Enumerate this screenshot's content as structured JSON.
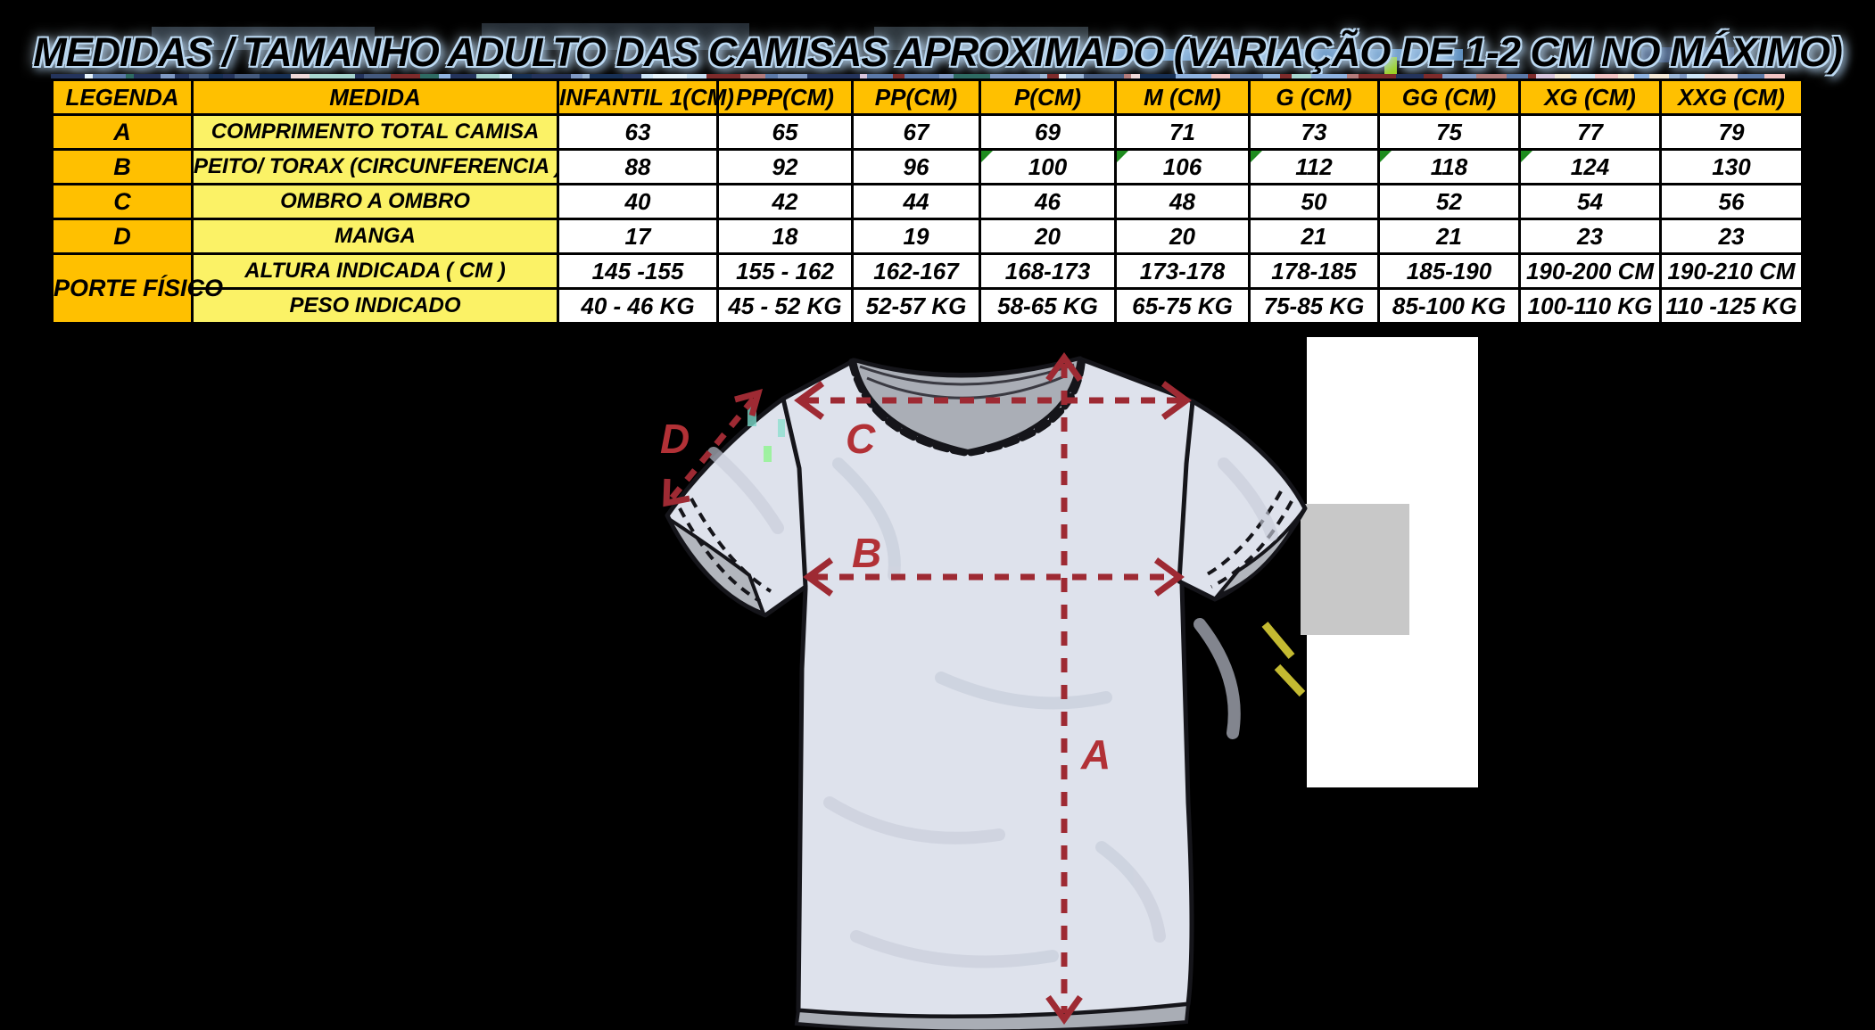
{
  "title": "MEDIDAS / TAMANHO ADULTO DAS CAMISAS APROXIMADO (VARIAÇÃO DE 1-2 CM NO MÁXIMO)",
  "table": {
    "headers": [
      "LEGENDA",
      "MEDIDA",
      "INFANTIL 1(CM)",
      "PPP(CM)",
      "PP(CM)",
      "P(CM)",
      "M (CM)",
      "G (CM)",
      "GG (CM)",
      "XG (CM)",
      "XXG (CM)"
    ],
    "rows": [
      {
        "legend": "A",
        "measure": "COMPRIMENTO TOTAL  CAMISA",
        "values": [
          "63",
          "65",
          "67",
          "69",
          "71",
          "73",
          "75",
          "77",
          "79"
        ],
        "flagged": []
      },
      {
        "legend": "B",
        "measure": "PEITO/ TORAX   (CIRCUNFERENCIA )",
        "values": [
          "88",
          "92",
          "96",
          "100",
          "106",
          "112",
          "118",
          "124",
          "130"
        ],
        "flagged": [
          3,
          4,
          5,
          6,
          7
        ]
      },
      {
        "legend": "C",
        "measure": "OMBRO A OMBRO",
        "values": [
          "40",
          "42",
          "44",
          "46",
          "48",
          "50",
          "52",
          "54",
          "56"
        ],
        "flagged": []
      },
      {
        "legend": "D",
        "measure": "MANGA",
        "values": [
          "17",
          "18",
          "19",
          "20",
          "20",
          "21",
          "21",
          "23",
          "23"
        ],
        "flagged": []
      },
      {
        "legend": "PORTE FÍSICO",
        "measure": "ALTURA INDICADA ( CM )",
        "values": [
          "145 -155",
          "155 - 162",
          "162-167",
          "168-173",
          "173-178",
          "178-185",
          "185-190",
          "190-200 CM",
          "190-210 CM"
        ],
        "flagged": []
      },
      {
        "legend": null,
        "measure": "PESO INDICADO",
        "values": [
          "40 - 46 KG",
          "45 - 52 KG",
          "52-57 KG",
          "58-65 KG",
          "65-75 KG",
          "75-85 KG",
          "85-100 KG",
          "100-110 KG",
          "110 -125 KG"
        ],
        "flagged": []
      }
    ]
  },
  "diagram": {
    "labels": {
      "a": "A",
      "b": "B",
      "c": "C",
      "d": "D"
    }
  },
  "colors": {
    "header_bg": "#FFC000",
    "measure_bg": "#FBF266",
    "cell_bg": "#FFFFFF",
    "flag_green": "#1E8C1E",
    "dash_red": "#9E2A33",
    "label_red": "#B23136",
    "shirt_fill": "#DEE2EC",
    "collar_gray": "#AAAEB6"
  }
}
